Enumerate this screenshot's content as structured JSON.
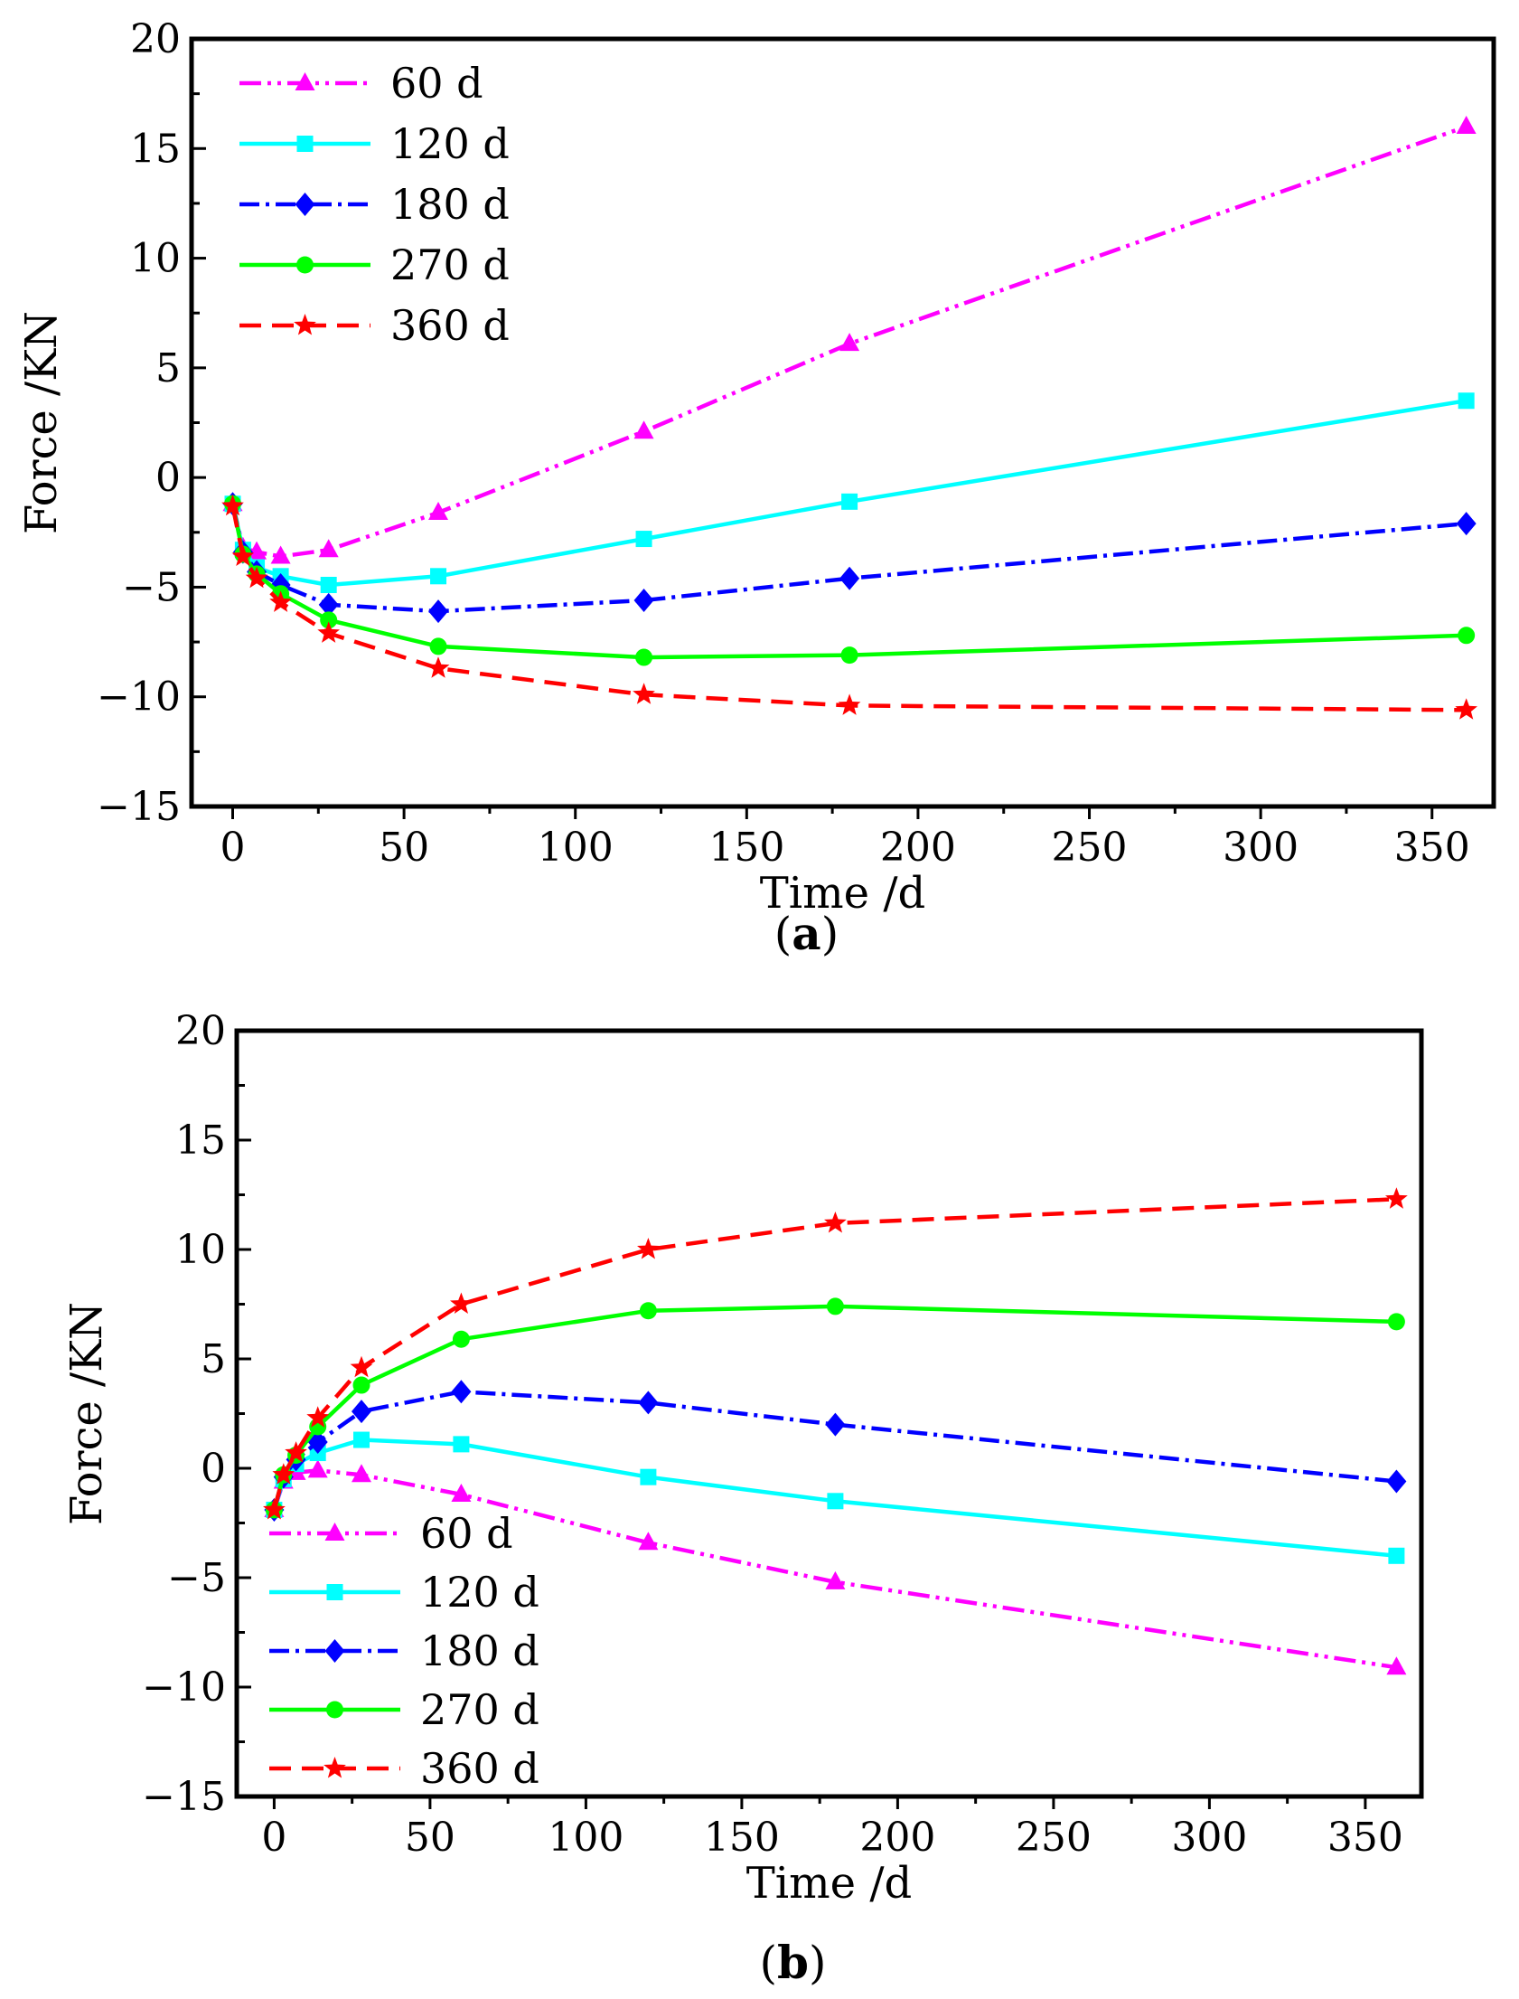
{
  "chart_data": [
    {
      "type": "line",
      "panel_label": "(a)",
      "panel_letter": "a",
      "xlabel": "Time /d",
      "ylabel": "Force /KN",
      "xlim": [
        -12,
        368
      ],
      "ylim": [
        -15,
        20
      ],
      "xticks": [
        0,
        50,
        100,
        150,
        200,
        250,
        300,
        350
      ],
      "yticks": [
        -15,
        -10,
        -5,
        0,
        5,
        10,
        15,
        20
      ],
      "xtick_labels": [
        "0",
        "50",
        "100",
        "150",
        "200",
        "250",
        "300",
        "350"
      ],
      "ytick_labels": [
        "−15",
        "−10",
        "−5",
        "0",
        "5",
        "10",
        "15",
        "20"
      ],
      "legend_position": "top-left",
      "x": [
        0,
        3,
        7,
        14,
        28,
        60,
        120,
        180,
        360
      ],
      "series": [
        {
          "name": "60 d",
          "values": [
            -1.2,
            -3.2,
            -3.4,
            -3.6,
            -3.3,
            -1.6,
            2.1,
            6.1,
            16.0
          ],
          "color": "#ff00ff",
          "dash": "24,7,4,7,4,7",
          "marker": "triangle"
        },
        {
          "name": "120 d",
          "values": [
            -1.2,
            -3.3,
            -4.1,
            -4.5,
            -4.9,
            -4.5,
            -2.8,
            -1.1,
            3.5
          ],
          "color": "#00ffff",
          "dash": "",
          "marker": "square"
        },
        {
          "name": "180 d",
          "values": [
            -1.2,
            -3.4,
            -4.3,
            -4.9,
            -5.8,
            -6.1,
            -5.6,
            -4.6,
            -2.1
          ],
          "color": "#0000ff",
          "dash": "22,7,4,7",
          "marker": "diamond"
        },
        {
          "name": "270 d",
          "values": [
            -1.2,
            -3.5,
            -4.4,
            -5.3,
            -6.5,
            -7.7,
            -8.2,
            -8.1,
            -7.2
          ],
          "color": "#00ff00",
          "dash": "",
          "marker": "circle"
        },
        {
          "name": "360 d",
          "values": [
            -1.3,
            -3.6,
            -4.6,
            -5.7,
            -7.1,
            -8.7,
            -9.9,
            -10.4,
            -10.6
          ],
          "color": "#ff0000",
          "dash": "24,12",
          "marker": "star"
        }
      ]
    },
    {
      "type": "line",
      "panel_label": "(b)",
      "panel_letter": "b",
      "xlabel": "Time /d",
      "ylabel": "Force /KN",
      "xlim": [
        -12,
        368
      ],
      "ylim": [
        -15,
        20
      ],
      "xticks": [
        0,
        50,
        100,
        150,
        200,
        250,
        300,
        350
      ],
      "yticks": [
        -15,
        -10,
        -5,
        0,
        5,
        10,
        15,
        20
      ],
      "xtick_labels": [
        "0",
        "50",
        "100",
        "150",
        "200",
        "250",
        "300",
        "350"
      ],
      "ytick_labels": [
        "−15",
        "−10",
        "−5",
        "0",
        "5",
        "10",
        "15",
        "20"
      ],
      "legend_position": "bottom-left",
      "x": [
        0,
        3,
        7,
        14,
        28,
        60,
        120,
        180,
        360
      ],
      "series": [
        {
          "name": "60 d",
          "values": [
            -1.9,
            -0.6,
            -0.2,
            -0.1,
            -0.3,
            -1.2,
            -3.4,
            -5.2,
            -9.1
          ],
          "color": "#ff00ff",
          "dash": "24,7,4,7,4,7",
          "marker": "triangle"
        },
        {
          "name": "120 d",
          "values": [
            -1.9,
            -0.5,
            0.2,
            0.7,
            1.3,
            1.1,
            -0.4,
            -1.5,
            -4.0
          ],
          "color": "#00ffff",
          "dash": "",
          "marker": "square"
        },
        {
          "name": "180 d",
          "values": [
            -1.9,
            -0.4,
            0.4,
            1.2,
            2.6,
            3.5,
            3.0,
            2.0,
            -0.6
          ],
          "color": "#0000ff",
          "dash": "22,7,4,7",
          "marker": "diamond"
        },
        {
          "name": "270 d",
          "values": [
            -1.9,
            -0.3,
            0.6,
            1.9,
            3.8,
            5.9,
            7.2,
            7.4,
            6.7
          ],
          "color": "#00ff00",
          "dash": "",
          "marker": "circle"
        },
        {
          "name": "360 d",
          "values": [
            -1.9,
            -0.3,
            0.7,
            2.3,
            4.6,
            7.5,
            10.0,
            11.2,
            12.3
          ],
          "color": "#ff0000",
          "dash": "24,12",
          "marker": "star"
        }
      ]
    }
  ]
}
